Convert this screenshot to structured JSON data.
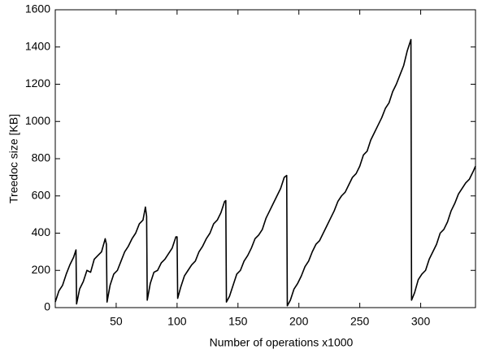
{
  "chart_data": {
    "type": "line",
    "x_label": "Number of operations x1000",
    "y_label": "Treedoc size [KB]",
    "xlim": [
      0,
      345
    ],
    "ylim": [
      0,
      1600
    ],
    "xticks": [
      50,
      100,
      150,
      200,
      250,
      300
    ],
    "yticks": [
      0,
      200,
      400,
      600,
      800,
      1000,
      1200,
      1400,
      1600
    ],
    "color": "#000000",
    "x": [
      0,
      3,
      6,
      9,
      12,
      15,
      17,
      17.5,
      20,
      23,
      26,
      29,
      32,
      35,
      38,
      41,
      42,
      42.5,
      45,
      48,
      51,
      54,
      57,
      60,
      63,
      66,
      69,
      72,
      74,
      75,
      75.5,
      78,
      81,
      84,
      87,
      90,
      93,
      96,
      99,
      100,
      100.5,
      103,
      106,
      109,
      112,
      115,
      118,
      121,
      124,
      127,
      130,
      133,
      136,
      139,
      140,
      140.5,
      143,
      146,
      149,
      152,
      155,
      158,
      161,
      164,
      167,
      170,
      173,
      176,
      179,
      182,
      185,
      188,
      190,
      190.5,
      193,
      196,
      199,
      202,
      205,
      208,
      211,
      214,
      217,
      220,
      223,
      226,
      229,
      232,
      235,
      238,
      241,
      244,
      247,
      250,
      253,
      256,
      259,
      262,
      265,
      268,
      271,
      274,
      277,
      280,
      283,
      286,
      289,
      291,
      292,
      292.5,
      295,
      298,
      301,
      304,
      307,
      310,
      313,
      316,
      319,
      322,
      325,
      328,
      331,
      334,
      337,
      340,
      343,
      345
    ],
    "values": [
      30,
      90,
      120,
      180,
      230,
      270,
      310,
      20,
      100,
      140,
      200,
      190,
      260,
      280,
      300,
      370,
      340,
      30,
      120,
      180,
      200,
      250,
      300,
      330,
      370,
      400,
      450,
      470,
      540,
      490,
      40,
      130,
      190,
      200,
      240,
      260,
      290,
      320,
      380,
      380,
      50,
      110,
      170,
      200,
      230,
      250,
      300,
      330,
      370,
      400,
      450,
      470,
      510,
      570,
      575,
      30,
      60,
      120,
      180,
      200,
      250,
      280,
      320,
      370,
      390,
      420,
      480,
      520,
      560,
      600,
      640,
      700,
      710,
      10,
      40,
      100,
      130,
      170,
      220,
      250,
      300,
      340,
      360,
      400,
      440,
      480,
      520,
      570,
      600,
      620,
      660,
      700,
      720,
      760,
      820,
      840,
      900,
      940,
      980,
      1020,
      1070,
      1100,
      1160,
      1200,
      1250,
      1300,
      1380,
      1420,
      1440,
      40,
      80,
      150,
      180,
      200,
      260,
      300,
      340,
      400,
      420,
      460,
      520,
      560,
      610,
      640,
      670,
      690,
      730,
      760
    ]
  }
}
